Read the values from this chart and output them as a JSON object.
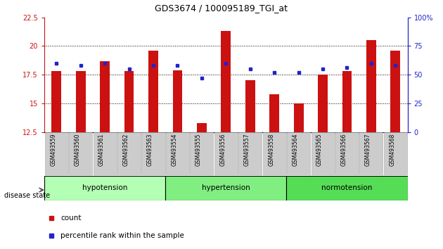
{
  "title": "GDS3674 / 100095189_TGI_at",
  "samples": [
    "GSM493559",
    "GSM493560",
    "GSM493561",
    "GSM493562",
    "GSM493563",
    "GSM493554",
    "GSM493555",
    "GSM493556",
    "GSM493557",
    "GSM493558",
    "GSM493564",
    "GSM493565",
    "GSM493566",
    "GSM493567",
    "GSM493568"
  ],
  "count_values": [
    17.8,
    17.8,
    18.7,
    17.8,
    19.6,
    17.9,
    13.3,
    21.3,
    17.0,
    15.8,
    15.0,
    17.5,
    17.8,
    20.5,
    19.6
  ],
  "percentile_values": [
    60,
    58,
    60,
    55,
    58,
    58,
    47,
    60,
    55,
    52,
    52,
    55,
    56,
    60,
    58
  ],
  "groups": [
    {
      "name": "hypotension",
      "start": 0,
      "end": 5,
      "color": "#b3ffb3"
    },
    {
      "name": "hypertension",
      "start": 5,
      "end": 10,
      "color": "#80ee80"
    },
    {
      "name": "normotension",
      "start": 10,
      "end": 15,
      "color": "#55dd55"
    }
  ],
  "ylim_left": [
    12.5,
    22.5
  ],
  "ylim_right": [
    0,
    100
  ],
  "yticks_left": [
    12.5,
    15.0,
    17.5,
    20.0,
    22.5
  ],
  "yticks_right": [
    0,
    25,
    50,
    75,
    100
  ],
  "bar_color": "#cc1111",
  "dot_color": "#2222cc",
  "bar_width": 0.4,
  "bar_bottom": 12.5,
  "background_color": "#ffffff",
  "disease_state_label": "disease state",
  "xlabel_bg": "#cccccc",
  "legend_count": "count",
  "legend_pct": "percentile rank within the sample"
}
